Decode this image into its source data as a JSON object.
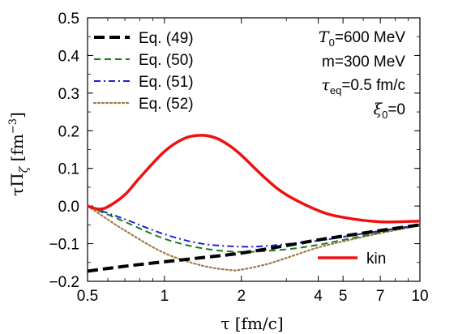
{
  "chart_data": {
    "type": "line",
    "xscale": "log",
    "xlabel": "τ [fm/c]",
    "ylabel": "τΠ_ζ [fm^-3]",
    "xlim": [
      0.5,
      10
    ],
    "ylim": [
      -0.2,
      0.5
    ],
    "xticks": [
      {
        "value": 0.5,
        "label": "0.5"
      },
      {
        "value": 1,
        "label": "1"
      },
      {
        "value": 2,
        "label": "2"
      },
      {
        "value": 4,
        "label": "4"
      },
      {
        "value": 5,
        "label": "5"
      },
      {
        "value": 7,
        "label": "7"
      },
      {
        "value": 10,
        "label": "10"
      }
    ],
    "yticks": [
      {
        "value": -0.2,
        "label": "−0.2"
      },
      {
        "value": -0.1,
        "label": "−0.1"
      },
      {
        "value": 0.0,
        "label": "0.0"
      },
      {
        "value": 0.1,
        "label": "0.1"
      },
      {
        "value": 0.2,
        "label": "0.2"
      },
      {
        "value": 0.3,
        "label": "0.3"
      },
      {
        "value": 0.4,
        "label": "0.4"
      },
      {
        "value": 0.5,
        "label": "0.5"
      }
    ],
    "series": [
      {
        "name": "Eq. (49)",
        "color": "#000000",
        "dash": "long-dash",
        "x": [
          0.5,
          0.7,
          1.0,
          1.5,
          2.0,
          3.0,
          4.0,
          5.0,
          7.0,
          10.0
        ],
        "y": [
          -0.173,
          -0.16,
          -0.148,
          -0.135,
          -0.125,
          -0.105,
          -0.09,
          -0.08,
          -0.065,
          -0.05
        ]
      },
      {
        "name": "Eq. (50)",
        "color": "#1a7a1a",
        "dash": "dash",
        "x": [
          0.5,
          0.7,
          1.0,
          1.4,
          2.0,
          3.0,
          4.0,
          5.0,
          7.0,
          10.0
        ],
        "y": [
          0.0,
          -0.042,
          -0.087,
          -0.112,
          -0.122,
          -0.115,
          -0.103,
          -0.09,
          -0.07,
          -0.05
        ]
      },
      {
        "name": "Eq. (51)",
        "color": "#1f1fd6",
        "dash": "dash-dot",
        "x": [
          0.5,
          0.7,
          1.0,
          1.4,
          2.0,
          2.5,
          3.0,
          4.0,
          5.0,
          7.0,
          10.0
        ],
        "y": [
          0.0,
          -0.035,
          -0.075,
          -0.1,
          -0.108,
          -0.106,
          -0.101,
          -0.092,
          -0.082,
          -0.066,
          -0.05
        ]
      },
      {
        "name": "Eq. (52)",
        "color": "#a07a48",
        "dash": "dot",
        "x": [
          0.5,
          0.7,
          1.0,
          1.4,
          1.8,
          2.0,
          2.5,
          3.0,
          4.0,
          5.0,
          7.0,
          10.0
        ],
        "y": [
          0.0,
          -0.065,
          -0.125,
          -0.158,
          -0.17,
          -0.169,
          -0.155,
          -0.138,
          -0.11,
          -0.094,
          -0.072,
          -0.052
        ]
      },
      {
        "name": "kin",
        "color": "#ee1111",
        "dash": "solid",
        "x": [
          0.5,
          0.55,
          0.6,
          0.7,
          0.8,
          1.0,
          1.2,
          1.4,
          1.6,
          1.8,
          2.0,
          2.5,
          3.0,
          4.0,
          5.0,
          7.0,
          10.0
        ],
        "y": [
          0.0,
          -0.008,
          -0.002,
          0.03,
          0.075,
          0.145,
          0.18,
          0.188,
          0.18,
          0.16,
          0.135,
          0.072,
          0.03,
          -0.012,
          -0.03,
          -0.042,
          -0.04
        ]
      }
    ],
    "legend_top_left": [
      "Eq. (49)",
      "Eq. (50)",
      "Eq. (51)",
      "Eq. (52)"
    ],
    "legend_bottom_right": "kin",
    "parameters": {
      "T0": "600 MeV",
      "m": "m=300 MeV",
      "tau_eq": "0.5 fm/c",
      "xi0": "0"
    },
    "grid": false
  }
}
